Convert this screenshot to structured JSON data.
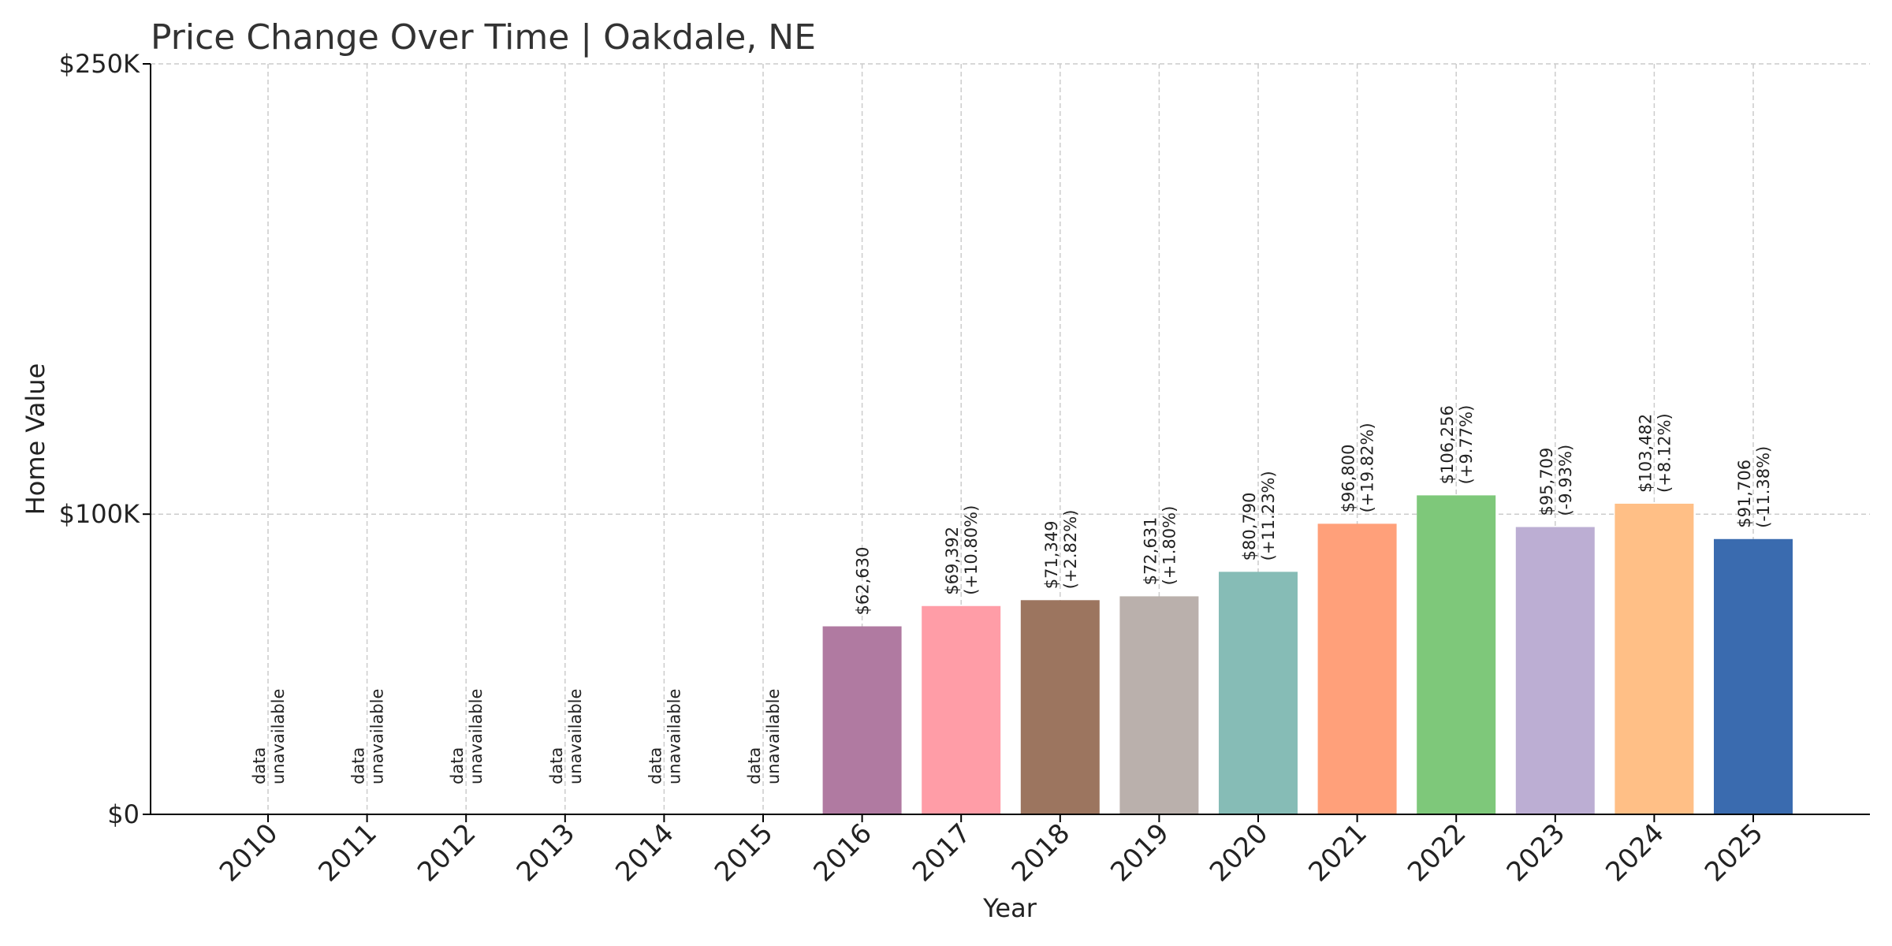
{
  "chart_data": {
    "type": "bar",
    "title": "Price Change Over Time | Oakdale, NE",
    "xlabel": "Year",
    "ylabel": "Home Value",
    "ylim": [
      0,
      250000
    ],
    "yticks": [
      {
        "value": 0,
        "label": "$0"
      },
      {
        "value": 100000,
        "label": "$100K"
      },
      {
        "value": 250000,
        "label": "$250K"
      }
    ],
    "grid": true,
    "categories": [
      "2010",
      "2011",
      "2012",
      "2013",
      "2014",
      "2015",
      "2016",
      "2017",
      "2018",
      "2019",
      "2020",
      "2021",
      "2022",
      "2023",
      "2024",
      "2025"
    ],
    "values": [
      null,
      null,
      null,
      null,
      null,
      null,
      62630,
      69392,
      71349,
      72631,
      80790,
      96800,
      106256,
      95709,
      103482,
      91706
    ],
    "value_labels": [
      "",
      "",
      "",
      "",
      "",
      "",
      "$62,630",
      "$69,392",
      "$71,349",
      "$72,631",
      "$80,790",
      "$96,800",
      "$106,256",
      "$95,709",
      "$103,482",
      "$91,706"
    ],
    "change_labels": [
      "",
      "",
      "",
      "",
      "",
      "",
      "",
      "(+10.80%)",
      "(+2.82%)",
      "(+1.80%)",
      "(+11.23%)",
      "(+19.82%)",
      "(+9.77%)",
      "(-9.93%)",
      "(+8.12%)",
      "(-11.38%)"
    ],
    "unavailable_label_line1": "data",
    "unavailable_label_line2": "unavailable",
    "colors": [
      "#b07aa1",
      "#b07aa1",
      "#b07aa1",
      "#b07aa1",
      "#b07aa1",
      "#b07aa1",
      "#b07aa1",
      "#ff9da7",
      "#9c755f",
      "#bab0ac",
      "#86bcb6",
      "#ffa07a",
      "#7ec87a",
      "#bcaed3",
      "#ffbf86",
      "#3a6baf"
    ]
  }
}
